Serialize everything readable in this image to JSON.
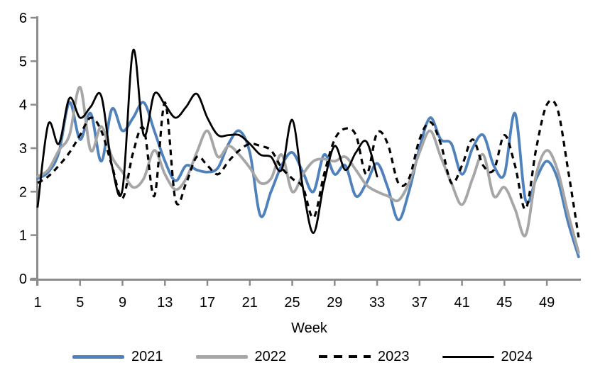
{
  "chart_data": {
    "type": "line",
    "title": "",
    "xlabel": "Week",
    "ylabel": "",
    "smoothed": true,
    "grid": false,
    "legend_position": "bottom",
    "axis_color": "#8c8c8c",
    "text_color": "#000000",
    "ylim": [
      0,
      6
    ],
    "xlim": [
      1,
      52
    ],
    "yticks": [
      0,
      1,
      2,
      3,
      4,
      5,
      6
    ],
    "xticks": [
      1,
      5,
      9,
      13,
      17,
      21,
      25,
      29,
      33,
      37,
      41,
      45,
      49
    ],
    "series": [
      {
        "name": "2021",
        "color": "#4f81bd",
        "style": "solid",
        "stroke_width": 3.8,
        "start_week": 1,
        "values": [
          2.3,
          2.45,
          2.9,
          4.05,
          3.2,
          3.8,
          2.7,
          3.9,
          3.4,
          3.7,
          4.05,
          3.4,
          2.7,
          2.25,
          2.6,
          2.5,
          2.45,
          2.55,
          3.1,
          3.4,
          2.9,
          1.45,
          2.0,
          2.6,
          2.9,
          2.45,
          2.0,
          2.85,
          2.4,
          2.6,
          1.9,
          2.2,
          2.65,
          2.1,
          1.35,
          2.0,
          3.0,
          3.7,
          3.2,
          3.1,
          2.4,
          3.0,
          3.3,
          2.6,
          2.4,
          3.8,
          1.8,
          2.3,
          2.7,
          2.3,
          1.3,
          0.5
        ]
      },
      {
        "name": "2022",
        "color": "#a6a6a6",
        "style": "solid",
        "stroke_width": 3.8,
        "start_week": 1,
        "values": [
          2.35,
          2.5,
          2.95,
          3.3,
          4.4,
          2.95,
          3.5,
          2.8,
          2.45,
          2.1,
          2.3,
          2.95,
          2.4,
          2.05,
          2.3,
          2.9,
          3.4,
          2.8,
          3.05,
          2.85,
          2.55,
          2.2,
          2.3,
          2.85,
          2.0,
          2.4,
          2.7,
          2.75,
          2.7,
          2.8,
          2.5,
          2.15,
          2.0,
          1.9,
          1.8,
          2.2,
          2.9,
          3.4,
          2.8,
          2.2,
          1.7,
          2.3,
          2.85,
          1.9,
          2.1,
          1.6,
          1.0,
          2.4,
          2.95,
          2.5,
          1.5,
          0.6
        ]
      },
      {
        "name": "2023",
        "color": "#000000",
        "style": "dashed",
        "stroke_width": 3.2,
        "start_week": 1,
        "values": [
          2.2,
          2.35,
          2.6,
          2.9,
          3.3,
          3.7,
          3.4,
          2.6,
          1.85,
          2.9,
          3.45,
          1.9,
          4.05,
          1.8,
          2.2,
          2.8,
          2.6,
          2.4,
          2.7,
          2.95,
          3.1,
          3.05,
          2.95,
          2.55,
          2.3,
          2.1,
          1.4,
          2.4,
          3.2,
          3.45,
          3.3,
          2.4,
          3.35,
          3.1,
          2.2,
          2.3,
          3.2,
          3.6,
          3.1,
          2.2,
          2.6,
          3.2,
          2.6,
          2.5,
          3.3,
          2.6,
          1.6,
          3.0,
          4.0,
          3.9,
          2.5,
          0.95
        ]
      },
      {
        "name": "2024",
        "color": "#000000",
        "style": "solid",
        "stroke_width": 2.8,
        "start_week": 1,
        "values": [
          1.65,
          3.55,
          3.1,
          4.15,
          3.7,
          3.95,
          4.2,
          2.6,
          2.05,
          5.25,
          3.3,
          4.25,
          4.0,
          3.7,
          3.95,
          4.25,
          3.7,
          3.3,
          3.3,
          3.3,
          3.1,
          2.85,
          2.8,
          2.5,
          3.65,
          2.1,
          1.05,
          2.2,
          3.05,
          2.5,
          2.9,
          3.15,
          2.35
        ]
      }
    ]
  }
}
